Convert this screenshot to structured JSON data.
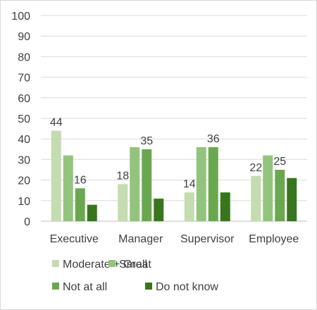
{
  "chart_data": {
    "type": "bar",
    "categories": [
      "Executive",
      "Manager",
      "Supervisor",
      "Employee"
    ],
    "ylim": [
      0,
      100
    ],
    "yticks": [
      0,
      10,
      20,
      30,
      40,
      50,
      60,
      70,
      80,
      90,
      100
    ],
    "grid": true,
    "legend_position": "bottom",
    "series": [
      {
        "name": "Moderate + Great",
        "color": "#c4dcb0",
        "values": [
          44,
          18,
          14,
          22
        ],
        "labels": [
          "44",
          "18",
          "14",
          "22"
        ]
      },
      {
        "name": "Small",
        "color": "#93c47d",
        "values": [
          32,
          36,
          36,
          32
        ],
        "labels": [
          "",
          "",
          "",
          ""
        ]
      },
      {
        "name": "Not at all",
        "color": "#6aa84f",
        "values": [
          16,
          35,
          36,
          25
        ],
        "labels": [
          "16",
          "35",
          "36",
          "25"
        ]
      },
      {
        "name": "Do not know",
        "color": "#38761d",
        "values": [
          8,
          11,
          14,
          21
        ],
        "labels": [
          "",
          "",
          "",
          ""
        ]
      }
    ]
  }
}
